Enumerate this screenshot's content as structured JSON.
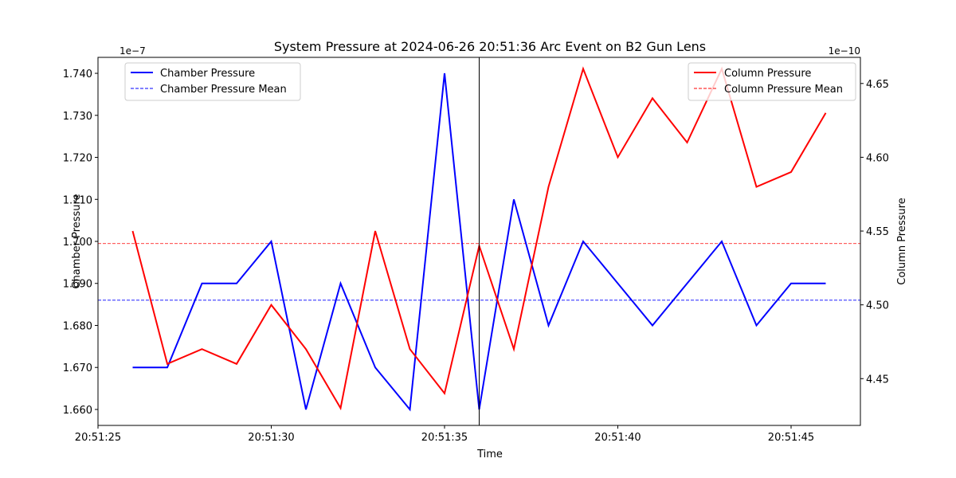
{
  "chart_data": {
    "type": "line",
    "title": "System Pressure at 2024-06-26 20:51:36 Arc Event on B2 Gun Lens",
    "xlabel": "Time",
    "ylabel_left": "Chamber Pressure",
    "ylabel_right": "Column Pressure",
    "left_offset_label": "1e−7",
    "right_offset_label": "1e−10",
    "x_ticks": [
      "20:51:25",
      "20:51:30",
      "20:51:35",
      "20:51:40",
      "20:51:45"
    ],
    "x_tick_seconds": [
      25,
      30,
      35,
      40,
      45
    ],
    "xlim_seconds": [
      25,
      47
    ],
    "left_ticks": [
      "1.660",
      "1.670",
      "1.680",
      "1.690",
      "1.700",
      "1.710",
      "1.720",
      "1.730",
      "1.740"
    ],
    "left_tick_values": [
      1.66,
      1.67,
      1.68,
      1.69,
      1.7,
      1.71,
      1.72,
      1.73,
      1.74
    ],
    "left_ylim": [
      1.6562,
      1.7438
    ],
    "right_ticks": [
      "4.45",
      "4.50",
      "4.55",
      "4.60",
      "4.65"
    ],
    "right_tick_values": [
      4.45,
      4.5,
      4.55,
      4.6,
      4.65
    ],
    "right_ylim": [
      4.4183,
      4.6677
    ],
    "event_time_seconds": 36,
    "x_seconds": [
      26,
      27,
      28,
      29,
      30,
      31,
      32,
      33,
      34,
      35,
      36,
      37,
      38,
      39,
      40,
      41,
      42,
      43,
      44,
      45,
      46
    ],
    "series": [
      {
        "name": "Chamber Pressure",
        "axis": "left",
        "color": "#0000ff",
        "values": [
          1.67,
          1.67,
          1.69,
          1.69,
          1.7,
          1.66,
          1.69,
          1.67,
          1.66,
          1.74,
          1.66,
          1.71,
          1.68,
          1.7,
          1.69,
          1.68,
          1.69,
          1.7,
          1.68,
          1.69,
          1.69
        ],
        "mean": 1.686
      },
      {
        "name": "Column Pressure",
        "axis": "right",
        "color": "#ff0000",
        "values": [
          4.55,
          4.46,
          4.47,
          4.46,
          4.5,
          4.47,
          4.43,
          4.55,
          4.47,
          4.44,
          4.54,
          4.47,
          4.58,
          4.66,
          4.6,
          4.64,
          4.61,
          4.66,
          4.58,
          4.59,
          4.63
        ],
        "mean": 4.5415
      }
    ],
    "legend_left": [
      "Chamber Pressure",
      "Chamber Pressure Mean"
    ],
    "legend_right": [
      "Column Pressure",
      "Column Pressure Mean"
    ],
    "legend_placement": [
      "upper-left",
      "upper-right"
    ],
    "grid": false
  }
}
